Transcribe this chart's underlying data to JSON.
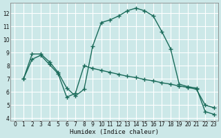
{
  "xlabel": "Humidex (Indice chaleur)",
  "bg_color": "#cce8e8",
  "grid_color": "#ffffff",
  "line_color": "#1a6b5a",
  "xlim": [
    -0.5,
    23.5
  ],
  "ylim": [
    3.8,
    12.8
  ],
  "xticks": [
    0,
    1,
    2,
    3,
    4,
    5,
    6,
    7,
    8,
    9,
    10,
    11,
    12,
    13,
    14,
    15,
    16,
    17,
    18,
    19,
    20,
    21,
    22,
    23
  ],
  "yticks": [
    4,
    5,
    6,
    7,
    8,
    9,
    10,
    11,
    12
  ],
  "curve1_x": [
    1,
    2,
    3,
    4,
    5,
    6,
    7,
    8,
    9,
    10,
    11,
    12,
    13,
    14,
    15,
    16,
    17,
    18,
    19,
    20,
    21,
    22,
    23
  ],
  "curve1_y": [
    7.0,
    8.9,
    8.9,
    8.3,
    7.5,
    6.3,
    5.7,
    6.2,
    9.5,
    11.3,
    11.5,
    11.8,
    12.2,
    12.4,
    12.2,
    11.8,
    10.6,
    9.3,
    6.6,
    6.4,
    6.3,
    4.5,
    4.3
  ],
  "curve2_x": [
    1,
    2,
    3,
    4,
    5,
    6,
    7,
    8,
    9,
    10,
    11,
    12,
    13,
    14,
    15,
    16,
    17,
    18,
    19,
    20,
    21,
    22,
    23
  ],
  "curve2_y": [
    7.0,
    8.5,
    8.8,
    8.1,
    7.4,
    5.6,
    5.9,
    8.0,
    7.8,
    7.65,
    7.5,
    7.35,
    7.2,
    7.1,
    6.95,
    6.85,
    6.7,
    6.6,
    6.45,
    6.35,
    6.2,
    5.0,
    4.8
  ]
}
